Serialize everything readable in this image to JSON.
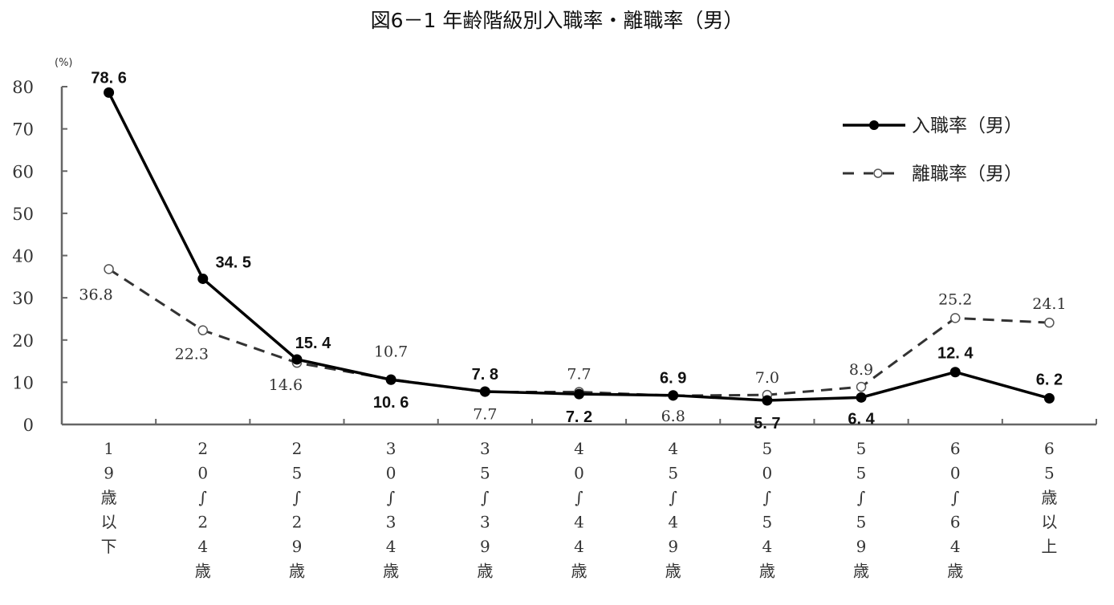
{
  "chart_data": {
    "type": "line",
    "title": "図6－1 年齢階級別入職率・離職率（男）",
    "xlabel": "",
    "ylabel": "(%)",
    "ylim": [
      0,
      80
    ],
    "yticks": [
      0,
      10,
      20,
      30,
      40,
      50,
      60,
      70,
      80
    ],
    "grid": false,
    "legend_position": "upper right",
    "categories": [
      "19歳以下",
      "20～24歳",
      "25～29歳",
      "30～34歳",
      "35～39歳",
      "40～44歳",
      "45～49歳",
      "50～54歳",
      "55～59歳",
      "60～64歳",
      "65歳以上"
    ],
    "category_label_chars": [
      [
        "1",
        "9",
        "歳",
        "以",
        "下"
      ],
      [
        "2",
        "0",
        "∫",
        "2",
        "4",
        "歳"
      ],
      [
        "2",
        "5",
        "∫",
        "2",
        "9",
        "歳"
      ],
      [
        "3",
        "0",
        "∫",
        "3",
        "4",
        "歳"
      ],
      [
        "3",
        "5",
        "∫",
        "3",
        "9",
        "歳"
      ],
      [
        "4",
        "0",
        "∫",
        "4",
        "4",
        "歳"
      ],
      [
        "4",
        "5",
        "∫",
        "4",
        "9",
        "歳"
      ],
      [
        "5",
        "0",
        "∫",
        "5",
        "4",
        "歳"
      ],
      [
        "5",
        "5",
        "∫",
        "5",
        "9",
        "歳"
      ],
      [
        "6",
        "0",
        "∫",
        "6",
        "4",
        "歳"
      ],
      [
        "6",
        "5",
        "歳",
        "以",
        "上"
      ]
    ],
    "series": [
      {
        "name": "入職率（男）",
        "style": "solid, filled circle markers",
        "color": "#000000",
        "values": [
          78.6,
          34.5,
          15.4,
          10.6,
          7.8,
          7.2,
          6.9,
          5.7,
          6.4,
          12.4,
          6.2
        ],
        "labels": [
          "78.6",
          "34.5",
          "15.4",
          "10.6",
          "7.8",
          "7.2",
          "6.9",
          "5.7",
          "6.4",
          "12.4",
          "6.2"
        ]
      },
      {
        "name": "離職率（男）",
        "style": "dashed, open circle markers",
        "color": "#333333",
        "values": [
          36.8,
          22.3,
          14.6,
          10.7,
          7.7,
          7.7,
          6.8,
          7.0,
          8.9,
          25.2,
          24.1
        ],
        "labels": [
          "36.8",
          "22.3",
          "14.6",
          "10.7",
          "7.7",
          "7.7",
          "6.8",
          "7.0",
          "8.9",
          "25.2",
          "24.1"
        ]
      }
    ]
  }
}
